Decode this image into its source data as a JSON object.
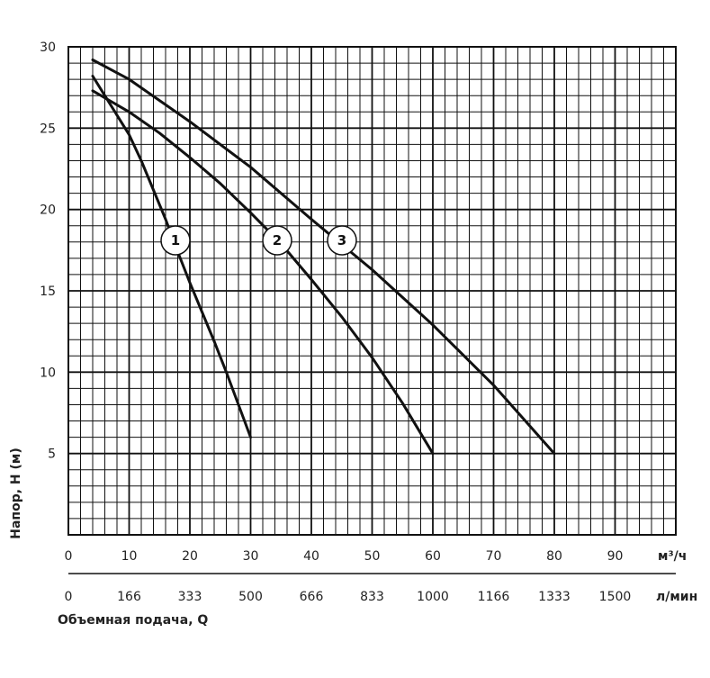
{
  "chart_data": {
    "type": "line",
    "ylabel": "Напор, H (м)",
    "xlabel": "Объемная подача, Q",
    "x_unit": "м³/ч",
    "x2_unit": "л/мин",
    "xlim": [
      0,
      100
    ],
    "ylim": [
      0,
      30
    ],
    "y_ticks": [
      5,
      10,
      15,
      20,
      25,
      30
    ],
    "x_ticks": [
      "0",
      "10",
      "20",
      "30",
      "40",
      "50",
      "60",
      "70",
      "80",
      "90"
    ],
    "x2_ticks": [
      "0",
      "166",
      "333",
      "500",
      "666",
      "833",
      "1000",
      "1166",
      "1333",
      "1500"
    ],
    "grid": true,
    "series": [
      {
        "name": "1",
        "x": [
          4,
          6,
          8,
          10,
          12,
          14,
          16,
          18,
          20,
          22,
          24,
          26,
          28,
          30
        ],
        "y": [
          28.2,
          27.0,
          25.8,
          24.6,
          23.0,
          21.2,
          19.4,
          17.4,
          15.5,
          13.7,
          11.9,
          10.0,
          8.0,
          6.0
        ]
      },
      {
        "name": "2",
        "x": [
          4,
          10,
          15,
          20,
          25,
          30,
          35,
          40,
          45,
          50,
          55,
          60
        ],
        "y": [
          27.3,
          26.0,
          24.7,
          23.2,
          21.6,
          19.8,
          17.9,
          15.7,
          13.4,
          10.9,
          8.1,
          5.0
        ]
      },
      {
        "name": "3",
        "x": [
          4,
          10,
          20,
          30,
          40,
          50,
          60,
          70,
          80
        ],
        "y": [
          29.2,
          28.0,
          25.4,
          22.6,
          19.4,
          16.3,
          12.9,
          9.2,
          5.0
        ]
      }
    ]
  }
}
